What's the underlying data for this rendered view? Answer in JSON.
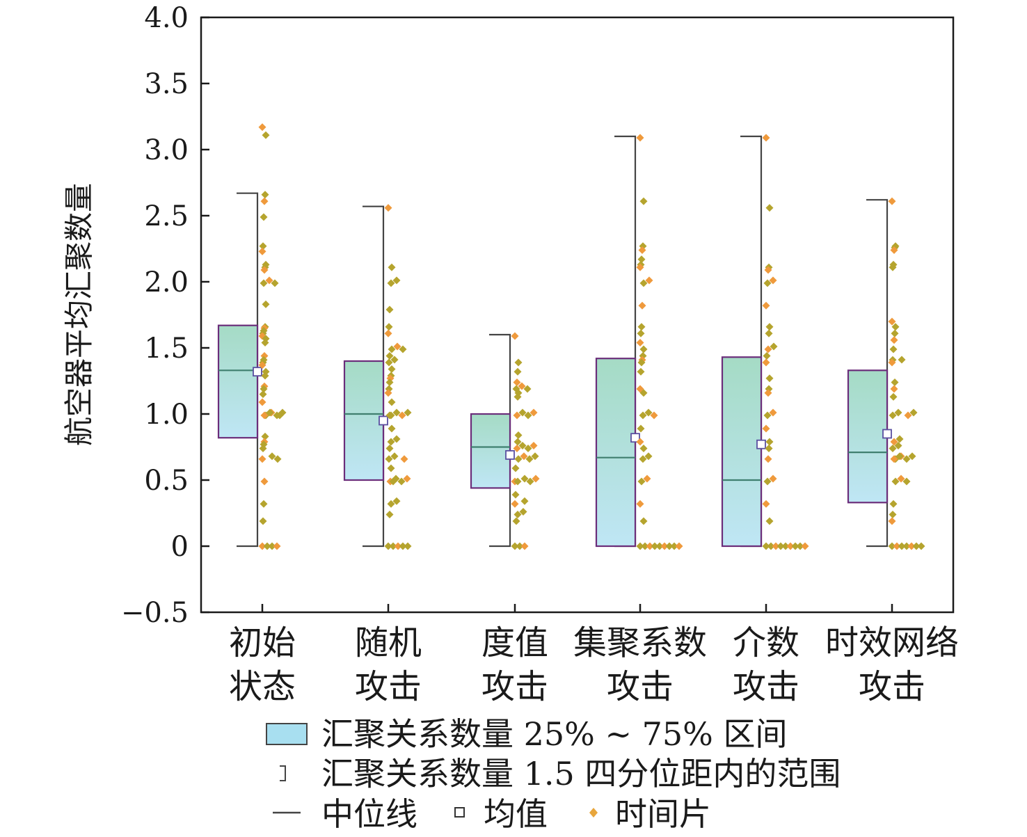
{
  "chart_data": {
    "type": "box",
    "ylabel": "航空器平均汇聚数量",
    "ylim": [
      -0.5,
      4.0
    ],
    "yticks": [
      "−0.5",
      "0",
      "0.5",
      "1.0",
      "1.5",
      "2.0",
      "2.5",
      "3.0",
      "3.5",
      "4.0"
    ],
    "ytick_values": [
      -0.5,
      0,
      0.5,
      1.0,
      1.5,
      2.0,
      2.5,
      3.0,
      3.5,
      4.0
    ],
    "grid": false,
    "legend_position": "bottom",
    "colors": {
      "box_fill_top": "#bfe6f5",
      "box_fill_bottom": "#a5dbc5",
      "box_edge": "#6b2d7a",
      "whisker": "#444444",
      "median": "#3f7f6f",
      "mean_marker": "#5a4fa0",
      "point_olive": "#b5a42e",
      "point_orange": "#ef9a3c"
    },
    "categories": [
      {
        "line1": "初始",
        "line2": "状态",
        "q1": 0.82,
        "median": 1.33,
        "q3": 1.67,
        "mean": 1.32,
        "whisker_low": 0.0,
        "whisker_high": 2.67,
        "points": [
          3.18,
          3.12,
          2.67,
          2.62,
          2.5,
          2.28,
          2.24,
          2.14,
          2.12,
          2.1,
          2.0,
          2.0,
          2.0,
          1.84,
          1.67,
          1.66,
          1.64,
          1.62,
          1.6,
          1.58,
          1.55,
          1.45,
          1.42,
          1.4,
          1.38,
          1.33,
          1.3,
          1.22,
          1.2,
          1.16,
          1.1,
          1.0,
          1.0,
          1.0,
          1.0,
          1.0,
          1.0,
          1.0,
          0.84,
          0.8,
          0.78,
          0.75,
          0.67,
          0.67,
          0.67,
          0.5,
          0.33,
          0.2,
          0.0,
          0.0,
          0.0,
          0.0
        ]
      },
      {
        "line1": "随机",
        "line2": "攻击",
        "q1": 0.5,
        "median": 1.0,
        "q3": 1.4,
        "mean": 0.95,
        "whisker_low": 0.0,
        "whisker_high": 2.57,
        "points": [
          2.57,
          2.12,
          2.0,
          2.0,
          1.8,
          1.67,
          1.62,
          1.5,
          1.5,
          1.5,
          1.45,
          1.4,
          1.4,
          1.35,
          1.3,
          1.28,
          1.25,
          1.2,
          1.17,
          1.1,
          1.0,
          1.0,
          1.0,
          1.0,
          1.0,
          0.9,
          0.8,
          0.8,
          0.75,
          0.67,
          0.67,
          0.67,
          0.6,
          0.5,
          0.5,
          0.5,
          0.5,
          0.5,
          0.33,
          0.33,
          0.25,
          0.0,
          0.0,
          0.0,
          0.0,
          0.0
        ]
      },
      {
        "line1": "度值",
        "line2": "攻击",
        "q1": 0.44,
        "median": 0.75,
        "q3": 1.0,
        "mean": 0.69,
        "whisker_low": 0.0,
        "whisker_high": 1.6,
        "points": [
          1.6,
          1.4,
          1.33,
          1.25,
          1.2,
          1.2,
          1.2,
          1.17,
          1.14,
          1.0,
          1.0,
          1.0,
          1.0,
          0.85,
          0.8,
          0.75,
          0.75,
          0.75,
          0.75,
          0.67,
          0.67,
          0.67,
          0.67,
          0.6,
          0.5,
          0.5,
          0.5,
          0.5,
          0.5,
          0.4,
          0.33,
          0.33,
          0.25,
          0.25,
          0.2,
          0.0,
          0.0,
          0.0
        ]
      },
      {
        "line1": "集聚系数",
        "line2": "攻击",
        "q1": 0.0,
        "median": 0.67,
        "q3": 1.42,
        "mean": 0.82,
        "whisker_low": 0.0,
        "whisker_high": 3.1,
        "points": [
          3.1,
          2.62,
          2.28,
          2.25,
          2.18,
          2.14,
          2.12,
          2.0,
          2.0,
          1.83,
          1.67,
          1.62,
          1.55,
          1.5,
          1.45,
          1.42,
          1.4,
          1.33,
          1.2,
          1.17,
          1.0,
          1.0,
          1.0,
          0.9,
          0.8,
          0.75,
          0.67,
          0.67,
          0.5,
          0.5,
          0.33,
          0.2,
          0.0,
          0.0,
          0.0,
          0.0,
          0.0,
          0.0,
          0.0,
          0.0,
          0.0
        ]
      },
      {
        "line1": "介数",
        "line2": "攻击",
        "q1": 0.0,
        "median": 0.5,
        "q3": 1.43,
        "mean": 0.77,
        "whisker_low": 0.0,
        "whisker_high": 3.1,
        "points": [
          3.1,
          2.57,
          2.12,
          2.1,
          2.0,
          2.0,
          1.83,
          1.67,
          1.62,
          1.5,
          1.5,
          1.45,
          1.4,
          1.28,
          1.2,
          1.17,
          1.0,
          1.0,
          0.9,
          0.8,
          0.75,
          0.67,
          0.5,
          0.5,
          0.33,
          0.2,
          0.0,
          0.0,
          0.0,
          0.0,
          0.0,
          0.0,
          0.0,
          0.0,
          0.0
        ]
      },
      {
        "line1": "时效网络",
        "line2": "攻击",
        "q1": 0.33,
        "median": 0.71,
        "q3": 1.33,
        "mean": 0.85,
        "whisker_low": 0.0,
        "whisker_high": 2.62,
        "points": [
          2.62,
          2.28,
          2.27,
          2.25,
          2.14,
          2.12,
          1.71,
          1.67,
          1.62,
          1.57,
          1.5,
          1.42,
          1.4,
          1.4,
          1.25,
          1.2,
          1.14,
          1.0,
          1.0,
          1.0,
          1.0,
          0.8,
          0.8,
          0.75,
          0.75,
          0.67,
          0.67,
          0.67,
          0.67,
          0.67,
          0.67,
          0.5,
          0.5,
          0.5,
          0.33,
          0.25,
          0.2,
          0.0,
          0.0,
          0.0,
          0.0,
          0.0,
          0.0,
          0.0
        ]
      }
    ]
  },
  "legend": {
    "box": "汇聚关系数量 25% ~ 75% 区间",
    "whisker": "汇聚关系数量 1.5 四分位距内的范围",
    "median": "中位线",
    "mean": "均值",
    "points": "时间片"
  }
}
